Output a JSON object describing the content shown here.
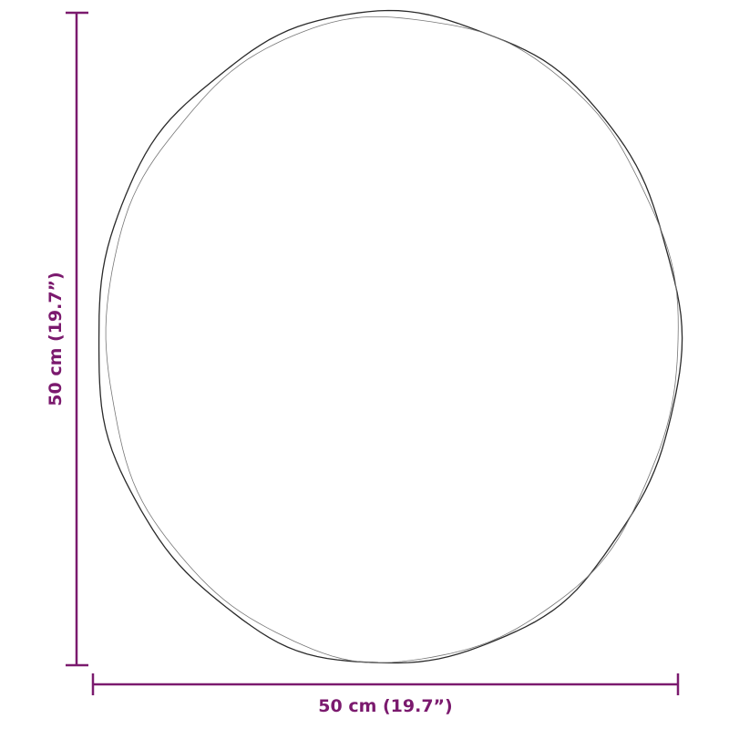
{
  "colors": {
    "dimension": "#7b1a6e",
    "outline": "#2a2a2a",
    "background": "#ffffff"
  },
  "dimensions": {
    "height_label": "50 cm (19.7”)",
    "width_label": "50 cm (19.7”)"
  },
  "object": {
    "shape": "round"
  }
}
